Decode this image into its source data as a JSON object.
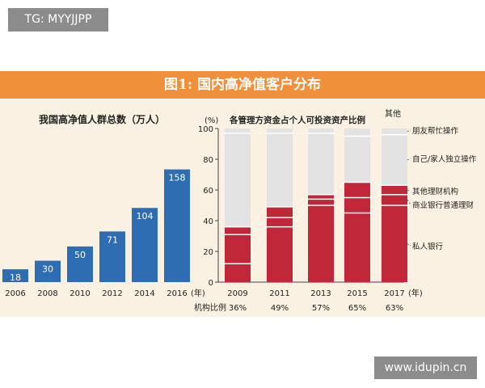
{
  "header_tag": "TG: MYYJJPP",
  "banner": {
    "title": "图1:  国内高净值客户分布"
  },
  "watermark": "www.idupin.cn",
  "colors": {
    "banner": "#f0903a",
    "panel_bg": "#fbf1e2",
    "bar_blue": "#2f6db3",
    "bar_red": "#c0283a",
    "bar_gray": "#e3e3e3"
  },
  "chart_data": [
    {
      "type": "bar",
      "title": "我国高净值人群总数（万人）",
      "categories": [
        "2006",
        "2008",
        "2010",
        "2012",
        "2014",
        "2016"
      ],
      "values": [
        18,
        30,
        50,
        71,
        104,
        158
      ],
      "unit_label": "(年)",
      "ylim": [
        0,
        170
      ],
      "data_labels": true
    },
    {
      "type": "bar",
      "stacked": true,
      "title": "各管理方资金占个人可投资资产比例",
      "ylabel": "(%)",
      "ylim": [
        0,
        100
      ],
      "yticks": [
        "0",
        "20",
        "40",
        "60",
        "80",
        "100"
      ],
      "categories": [
        "2009",
        "2011",
        "2013",
        "2015",
        "2017"
      ],
      "unit_label": "(年)",
      "series": [
        {
          "name": "私人银行",
          "values": [
            12,
            36,
            50,
            45,
            50
          ]
        },
        {
          "name": "商业银行普通理财",
          "values": [
            19,
            6,
            4,
            10,
            7
          ]
        },
        {
          "name": "其他理财机构",
          "values": [
            5,
            7,
            3,
            10,
            6
          ]
        },
        {
          "name": "自己/家人独立操作",
          "values": [
            61,
            48,
            40,
            30,
            33
          ]
        },
        {
          "name": "朋友帮忙操作",
          "values": [
            3,
            3,
            3,
            5,
            4
          ]
        }
      ],
      "series_labels": [
        "私人银行",
        "商业银行普通理财",
        "其他理财机构",
        "自己/家人独立操作",
        "朋友帮忙操作"
      ],
      "extra_label": "其他",
      "ratio_title": "机构比例",
      "ratios": [
        "36%",
        "49%",
        "57%",
        "65%",
        "63%"
      ]
    }
  ]
}
